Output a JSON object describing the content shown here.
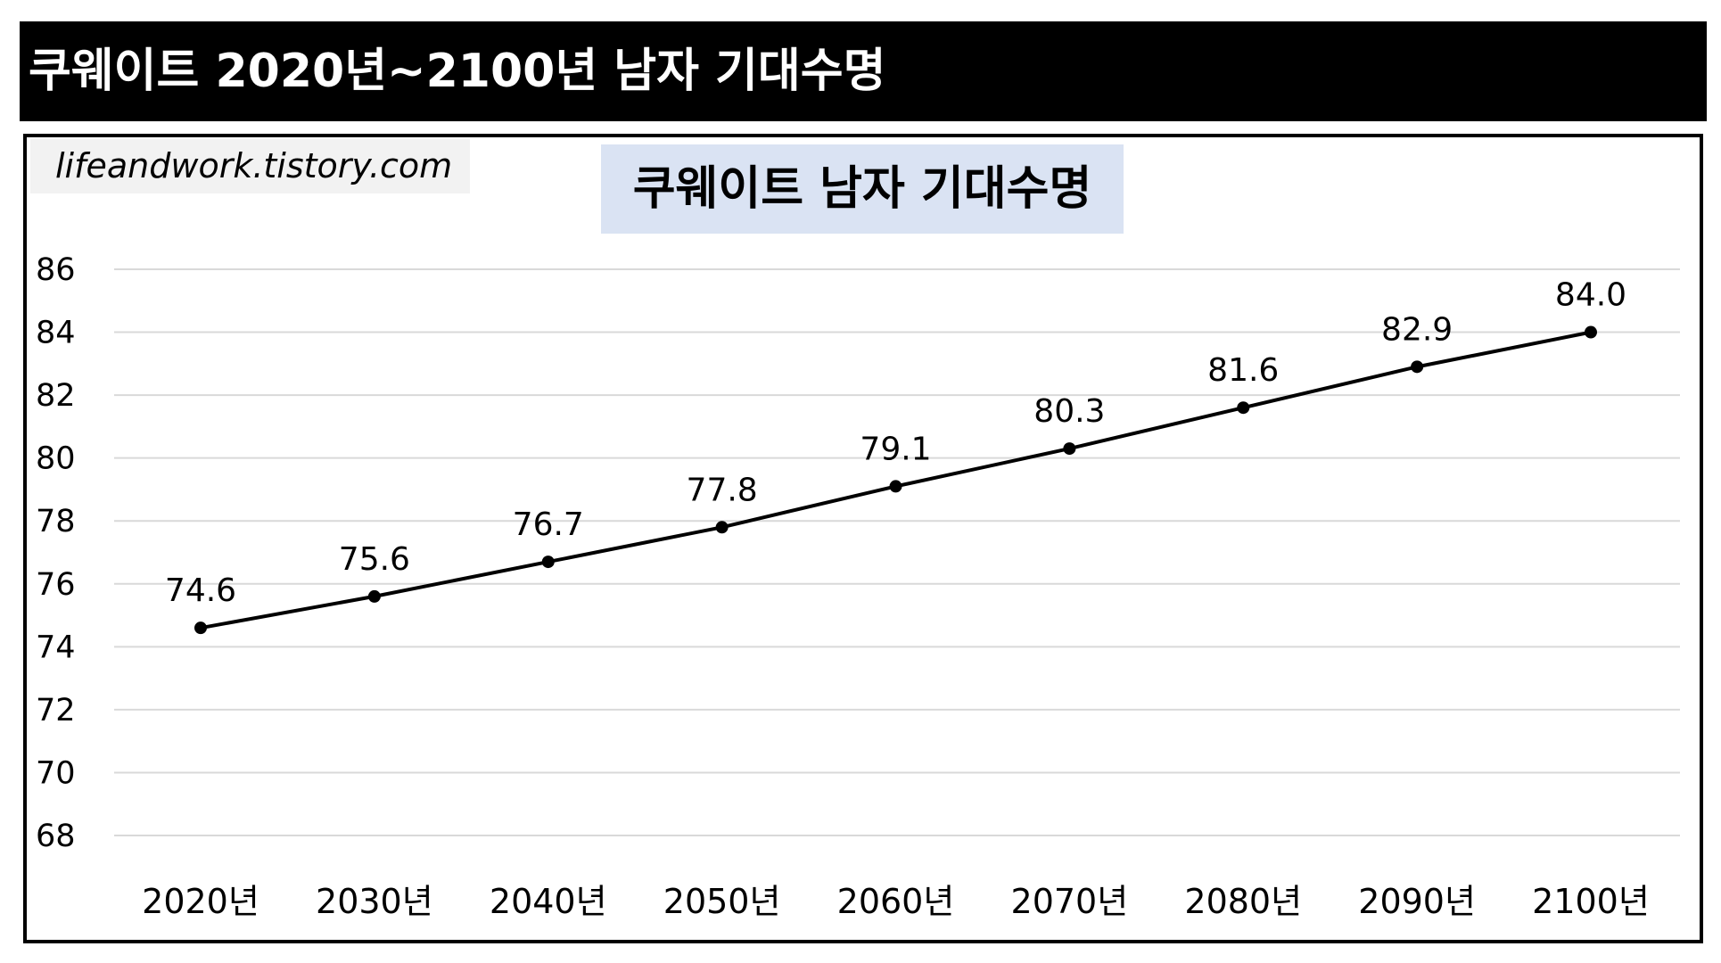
{
  "banner": {
    "title": "쿠웨이트 2020년~2100년 남자 기대수명"
  },
  "watermark": "lifeandwork.tistory.com",
  "chart_data": {
    "type": "line",
    "title": "쿠웨이트 남자 기대수명",
    "categories": [
      "2020년",
      "2030년",
      "2040년",
      "2050년",
      "2060년",
      "2070년",
      "2080년",
      "2090년",
      "2100년"
    ],
    "values": [
      74.6,
      75.6,
      76.7,
      77.8,
      79.1,
      80.3,
      81.6,
      82.9,
      84.0
    ],
    "data_labels": [
      "74.6",
      "75.6",
      "76.7",
      "77.8",
      "79.1",
      "80.3",
      "81.6",
      "82.9",
      "84.0"
    ],
    "yticks": [
      68,
      70,
      72,
      74,
      76,
      78,
      80,
      82,
      84,
      86
    ],
    "ylim": [
      68,
      86
    ],
    "xlabel": "",
    "ylabel": "",
    "grid": true,
    "line_color": "#000000",
    "grid_color": "#d9d9d9"
  }
}
